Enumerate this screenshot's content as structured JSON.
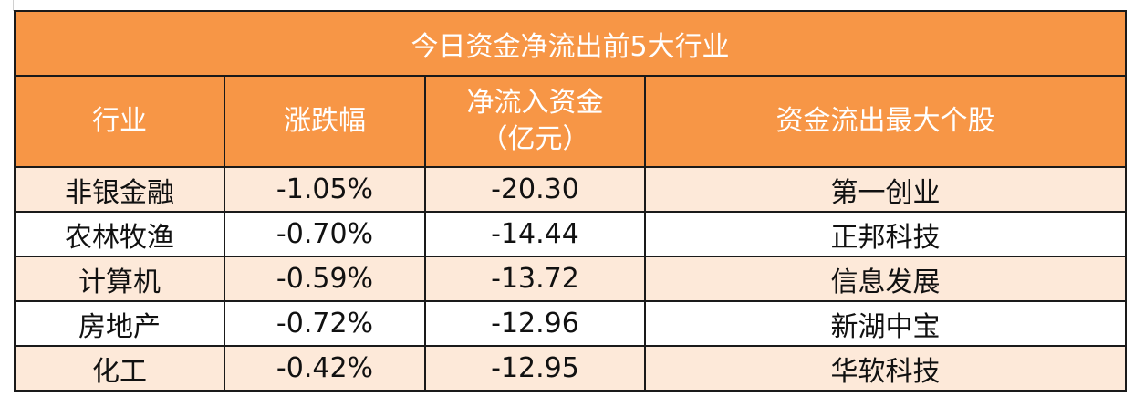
{
  "title": "今日资金净流出前5大行业",
  "colors": {
    "header_bg": "#f79646",
    "odd_row_bg": "#fde9d9",
    "even_row_bg": "#ffffff"
  },
  "columns": [
    "行业",
    "涨跌幅",
    "净流入资金",
    "资金流出最大个股"
  ],
  "column_sub": {
    "2": "（亿元）"
  },
  "rows": [
    [
      "非银金融",
      "-1.05%",
      "-20.30",
      "第一创业"
    ],
    [
      "农林牧渔",
      "-0.70%",
      "-14.44",
      "正邦科技"
    ],
    [
      "计算机",
      "-0.59%",
      "-13.72",
      "信息发展"
    ],
    [
      "房地产",
      "-0.72%",
      "-12.96",
      "新湖中宝"
    ],
    [
      "化工",
      "-0.42%",
      "-12.95",
      "华软科技"
    ]
  ]
}
